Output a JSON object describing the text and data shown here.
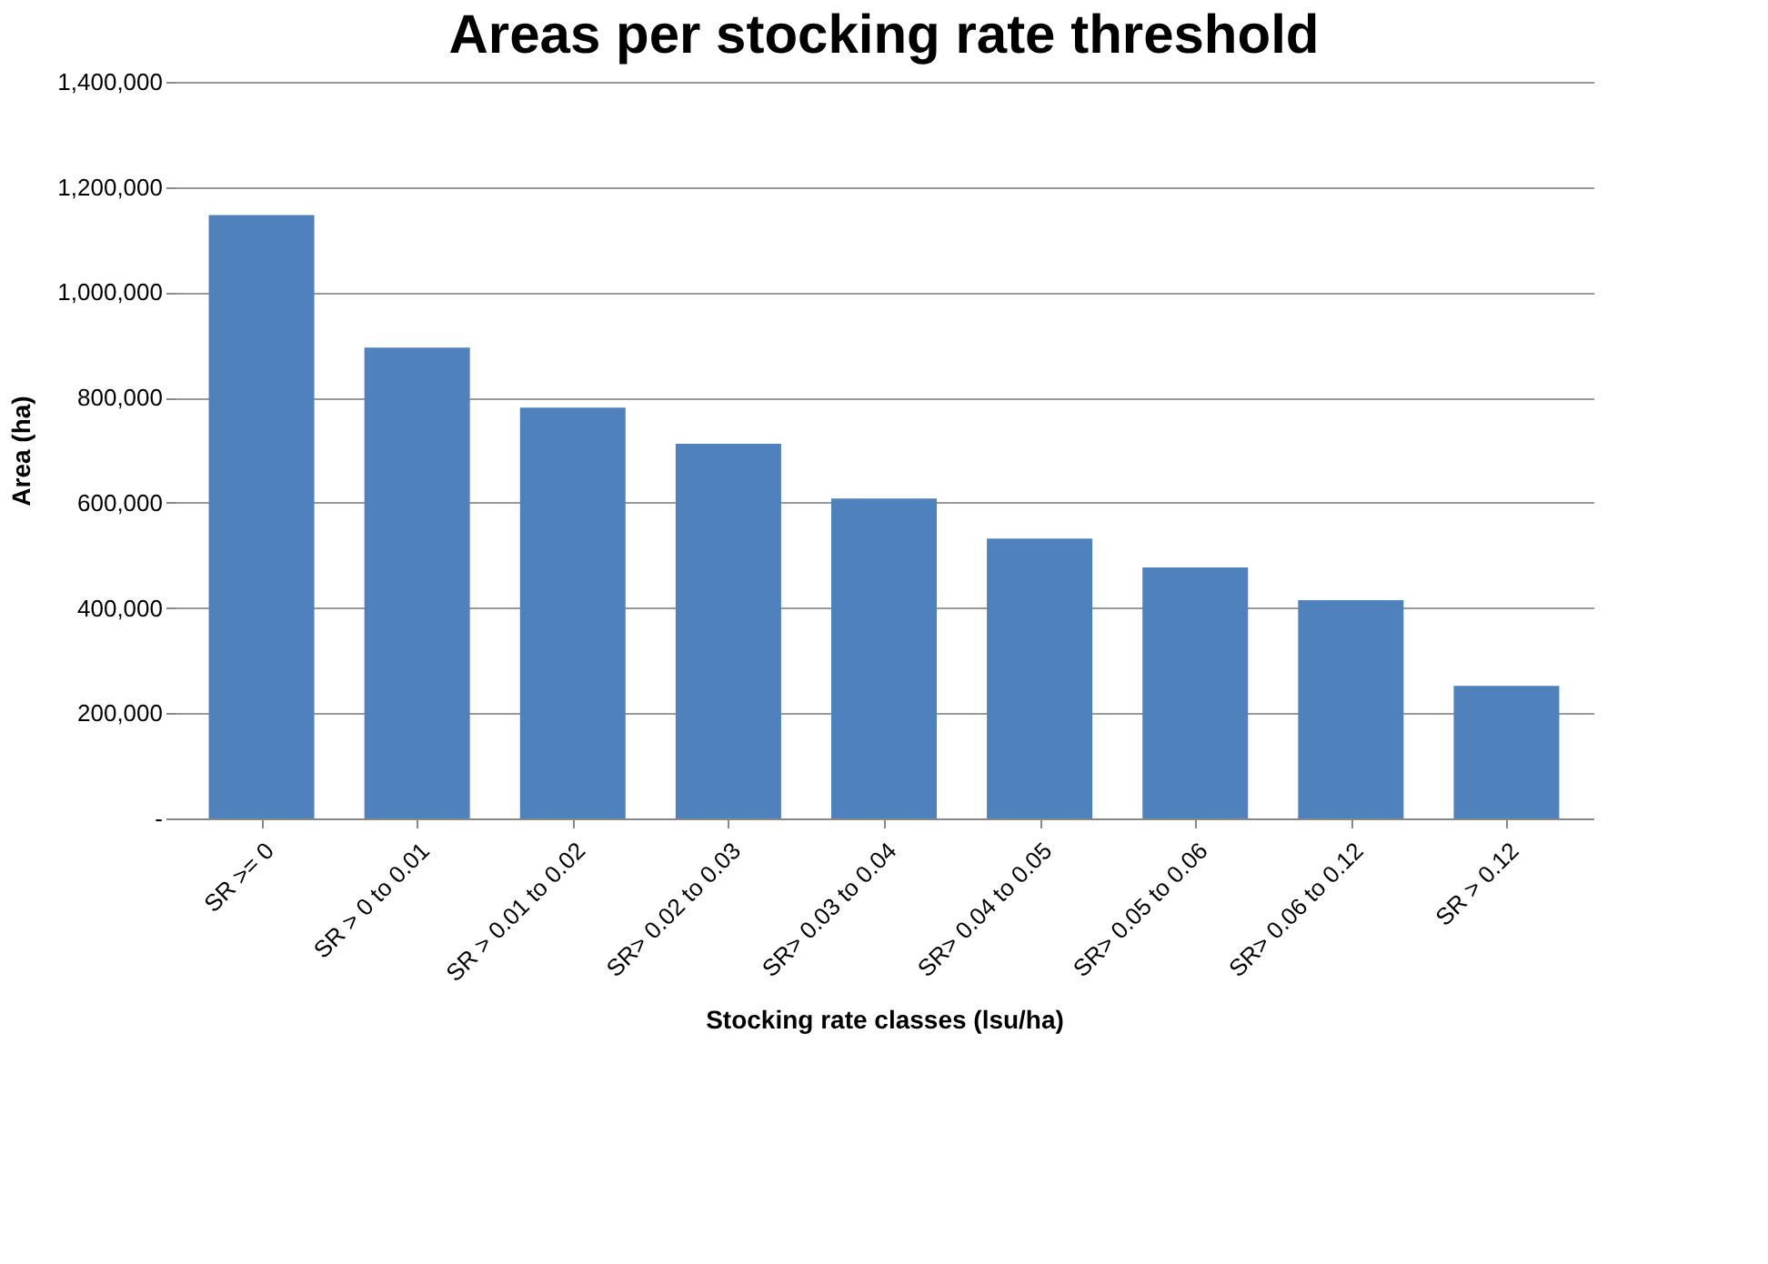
{
  "chart_data": {
    "type": "bar",
    "title": "Areas per stocking rate threshold",
    "xlabel": "Stocking rate classes (lsu/ha)",
    "ylabel": "Area (ha)",
    "categories": [
      "SR >= 0",
      "SR > 0 to 0.01",
      "SR > 0.01 to 0.02",
      "SR> 0.02 to 0.03",
      "SR> 0.03 to 0.04",
      "SR> 0.04 to 0.05",
      "SR> 0.05 to 0.06",
      "SR> 0.06 to 0.12",
      "SR > 0.12"
    ],
    "values": [
      1147000,
      895000,
      781000,
      712000,
      608000,
      532000,
      477000,
      415000,
      252000
    ],
    "color": "#4f81bd",
    "ylim": [
      0,
      1400000
    ],
    "yticks": [
      {
        "value": 0,
        "label": "-"
      },
      {
        "value": 200000,
        "label": "200,000"
      },
      {
        "value": 400000,
        "label": "400,000"
      },
      {
        "value": 600000,
        "label": "600,000"
      },
      {
        "value": 800000,
        "label": "800,000"
      },
      {
        "value": 1000000,
        "label": "1,000,000"
      },
      {
        "value": 1200000,
        "label": "1,200,000"
      },
      {
        "value": 1400000,
        "label": "1,400,000"
      }
    ],
    "grid": "y"
  }
}
